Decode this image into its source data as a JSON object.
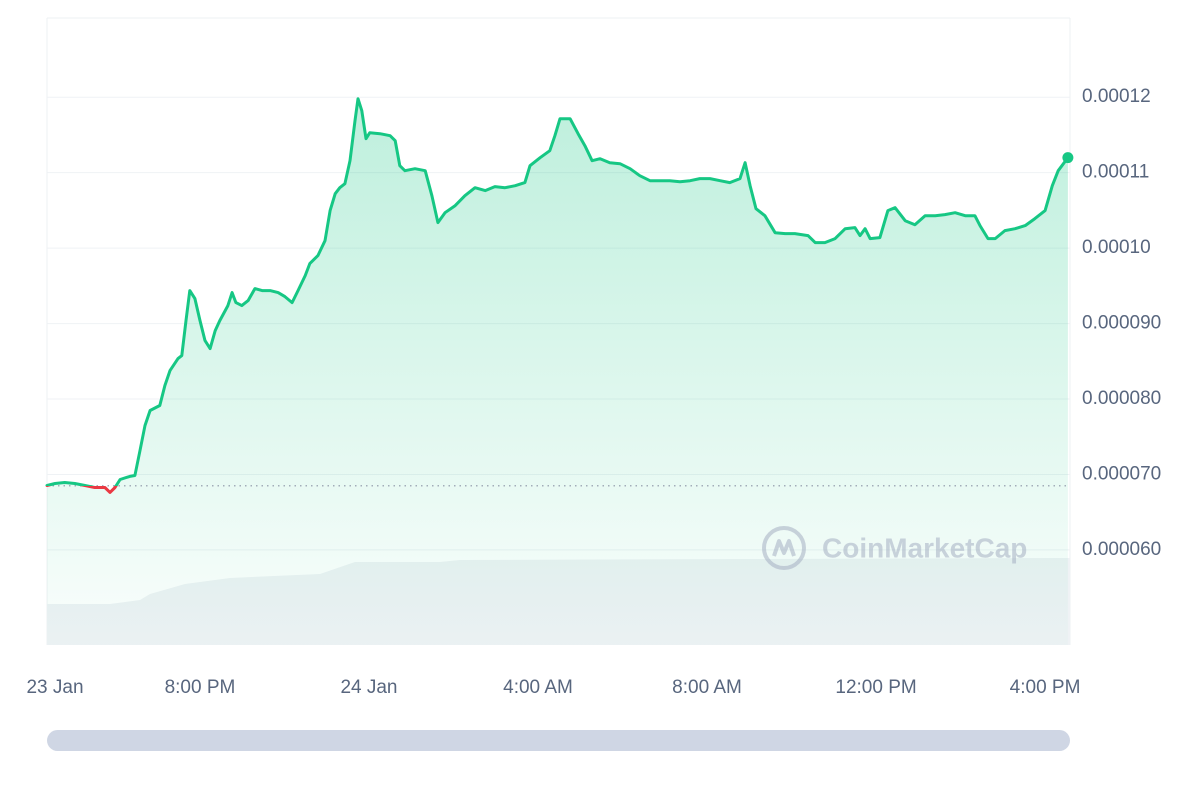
{
  "chart_data": {
    "type": "line",
    "watermark": "CoinMarketCap",
    "x": [
      16.38,
      16.57,
      16.8,
      17.04,
      17.28,
      17.51,
      17.75,
      17.87,
      17.99,
      18.11,
      18.34,
      18.46,
      18.58,
      18.7,
      18.82,
      19.05,
      19.17,
      19.29,
      19.48,
      19.57,
      19.67,
      19.76,
      19.88,
      20.0,
      20.12,
      20.24,
      20.36,
      20.47,
      20.66,
      20.76,
      20.85,
      20.99,
      21.14,
      21.3,
      21.47,
      21.66,
      21.85,
      22.01,
      22.18,
      22.32,
      22.49,
      22.6,
      22.79,
      22.96,
      23.08,
      23.2,
      23.31,
      23.43,
      23.55,
      23.67,
      23.74,
      23.83,
      23.93,
      24.02,
      24.26,
      24.5,
      24.62,
      24.73,
      24.85,
      25.09,
      25.33,
      25.49,
      25.63,
      25.8,
      26.04,
      26.27,
      26.51,
      26.75,
      26.98,
      27.22,
      27.46,
      27.69,
      27.81,
      28.05,
      28.28,
      28.4,
      28.52,
      28.76,
      28.95,
      29.11,
      29.28,
      29.47,
      29.7,
      29.94,
      30.18,
      30.41,
      30.65,
      30.89,
      31.12,
      31.36,
      31.6,
      31.83,
      32.07,
      32.31,
      32.54,
      32.78,
      32.9,
      33.02,
      33.16,
      33.37,
      33.61,
      33.85,
      34.08,
      34.39,
      34.56,
      34.79,
      35.03,
      35.27,
      35.5,
      35.62,
      35.74,
      35.86,
      36.09,
      36.28,
      36.45,
      36.69,
      36.92,
      37.16,
      37.4,
      37.63,
      37.87,
      38.11,
      38.34,
      38.46,
      38.65,
      38.82,
      39.05,
      39.29,
      39.53,
      39.76,
      40.0,
      40.17,
      40.31,
      40.54
    ],
    "series": [
      {
        "color": "#16c784",
        "below_color": "#ea3943",
        "values": [
          6.854e-05,
          6.881e-05,
          6.894e-05,
          6.881e-05,
          6.854e-05,
          6.828e-05,
          6.828e-05,
          6.762e-05,
          6.828e-05,
          6.934e-05,
          6.974e-05,
          6.987e-05,
          7.318e-05,
          7.649e-05,
          7.848e-05,
          7.914e-05,
          8.179e-05,
          8.377e-05,
          8.536e-05,
          8.576e-05,
          9.039e-05,
          9.437e-05,
          9.331e-05,
          9.039e-05,
          8.775e-05,
          8.669e-05,
          8.907e-05,
          9.039e-05,
          9.238e-05,
          9.411e-05,
          9.278e-05,
          9.238e-05,
          9.305e-05,
          9.464e-05,
          9.437e-05,
          9.437e-05,
          9.411e-05,
          9.358e-05,
          9.278e-05,
          9.437e-05,
          9.636e-05,
          9.795e-05,
          9.901e-05,
          0.00010099,
          0.00010497,
          0.00010722,
          0.00010801,
          0.00010854,
          0.00011159,
          0.00011689,
          0.0001198,
          0.00011821,
          0.0001145,
          0.0001153,
          0.00011517,
          0.0001149,
          0.00011424,
          0.00011093,
          0.00011026,
          0.00011053,
          0.00011026,
          0.00010695,
          0.00010338,
          0.0001047,
          0.00010563,
          0.00010695,
          0.00010801,
          0.00010762,
          0.00010815,
          0.00010801,
          0.00010828,
          0.00010868,
          0.00011093,
          0.00011199,
          0.00011291,
          0.0001149,
          0.00011715,
          0.00011715,
          0.00011517,
          0.00011358,
          0.00011159,
          0.00011185,
          0.00011132,
          0.00011119,
          0.00011053,
          0.0001096,
          0.00010894,
          0.00010894,
          0.00010894,
          0.00010881,
          0.00010894,
          0.00010921,
          0.00010921,
          0.00010894,
          0.00010868,
          0.00010921,
          0.00011132,
          0.00010828,
          0.00010523,
          0.0001043,
          0.00010205,
          0.00010192,
          0.00010192,
          0.00010166,
          0.00010073,
          0.00010073,
          0.00010126,
          0.00010258,
          0.00010272,
          0.00010166,
          0.00010258,
          0.00010126,
          0.00010139,
          0.00010497,
          0.00010536,
          0.00010364,
          0.00010311,
          0.0001043,
          0.0001043,
          0.00010444,
          0.0001047,
          0.0001043,
          0.0001043,
          0.00010298,
          0.00010126,
          0.00010126,
          0.00010232,
          0.00010258,
          0.00010298,
          0.00010391,
          0.00010497,
          0.00010828,
          0.00011026,
          0.00011199
        ]
      }
    ],
    "baseline": 6.85e-05,
    "xlim": [
      16.38,
      40.59
    ],
    "xticks": [
      {
        "value": 16,
        "label": "23 Jan"
      },
      {
        "value": 20,
        "label": "8:00 PM"
      },
      {
        "value": 24,
        "label": "24 Jan"
      },
      {
        "value": 28,
        "label": "4:00 AM"
      },
      {
        "value": 32,
        "label": "8:00 AM"
      },
      {
        "value": 36,
        "label": "12:00 PM"
      },
      {
        "value": 40,
        "label": "4:00 PM"
      }
    ],
    "ylim": [
      4.74e-05,
      0.0001305
    ],
    "yticks": [
      {
        "value": 6e-05,
        "label": "0.000060"
      },
      {
        "value": 7e-05,
        "label": "0.000070"
      },
      {
        "value": 8e-05,
        "label": "0.000080"
      },
      {
        "value": 9e-05,
        "label": "0.000090"
      },
      {
        "value": 0.0001,
        "label": "0.00010"
      },
      0.00011,
      0.00012
    ],
    "grid": true
  }
}
